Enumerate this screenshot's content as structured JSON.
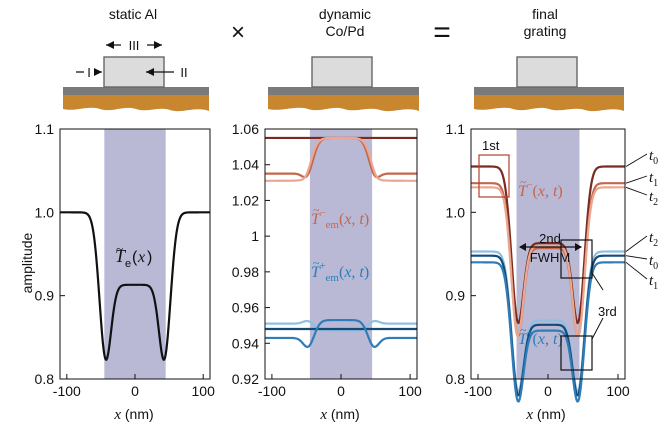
{
  "header": {
    "col1": [
      "static Al"
    ],
    "col2": [
      "dynamic",
      "Co/Pd"
    ],
    "col3": [
      "final",
      "grating"
    ],
    "op_times": "×",
    "op_equals": "=",
    "region_labels": {
      "III": "III",
      "I": "I",
      "II": "II"
    }
  },
  "colors": {
    "shade": "#b9b9d6",
    "substrate": "#c8862f",
    "cap": "#7a7a7a",
    "block_fill": "#dcdcdc",
    "block_stroke": "#666666",
    "black": "#111111",
    "dark_red": "#7a2a1e",
    "mid_red": "#c5664c",
    "light_red": "#e9a892",
    "dark_blue": "#134a78",
    "mid_blue": "#2f7db8",
    "light_blue": "#8fbfe3"
  },
  "chart_data": [
    {
      "type": "line",
      "title": "static Al",
      "xlabel": "x (nm)",
      "ylabel": "amplitude",
      "xlim": [
        -110,
        110
      ],
      "ylim": [
        0.8,
        1.1
      ],
      "xticks": [
        "-100",
        "0",
        "100"
      ],
      "yticks": [
        "0.8",
        "0.9",
        "1.0",
        "1.1"
      ],
      "shaded_region": [
        -45,
        45
      ],
      "series": [
        {
          "name": "T̃e(x)",
          "base": 1.0,
          "dips": [
            {
              "x": -45,
              "d": 0.127,
              "w": 8.5
            },
            {
              "x": 45,
              "d": 0.127,
              "w": 8.5
            }
          ],
          "bump": {
            "d": 0.087,
            "half": 45,
            "s": 4.5
          },
          "color": "#111111"
        }
      ],
      "annotation": "T̃e(x)"
    },
    {
      "type": "line",
      "title": "dynamic Co/Pd",
      "xlabel": "x (nm)",
      "xlim": [
        -110,
        110
      ],
      "ylim": [
        0.92,
        1.06
      ],
      "xticks": [
        "-100",
        "0",
        "100"
      ],
      "yticks": [
        "0.92",
        "0.94",
        "0.96",
        "0.98",
        "1",
        "1.02",
        "1.04",
        "1.06"
      ],
      "shaded_region": [
        -45,
        45
      ],
      "series": [
        {
          "name": "t0 (upper)",
          "base": 1.055,
          "flat": true,
          "color": "#7a2a1e"
        },
        {
          "name": "t1 (upper)",
          "base": 1.035,
          "dips": [
            {
              "x": -45,
              "d": 0.008,
              "w": 8
            },
            {
              "x": 45,
              "d": 0.008,
              "w": 8
            }
          ],
          "bump": {
            "d": -0.02,
            "half": 45,
            "s": 4.5
          },
          "color": "#c5664c"
        },
        {
          "name": "t2 (upper)",
          "base": 1.031,
          "dips": [
            {
              "x": -45,
              "d": 0.003,
              "w": 8
            },
            {
              "x": 45,
              "d": 0.003,
              "w": 8
            }
          ],
          "bump": {
            "d": -0.024,
            "half": 45,
            "s": 4.5
          },
          "color": "#e9a892"
        },
        {
          "name": "t2 (lower)",
          "base": 0.951,
          "dips": [
            {
              "x": -45,
              "d": -0.003,
              "w": 8
            },
            {
              "x": 45,
              "d": -0.003,
              "w": 8
            }
          ],
          "bump": {
            "d": 0.004,
            "half": 45,
            "s": 4.5
          },
          "color": "#8fbfe3"
        },
        {
          "name": "t0 (lower)",
          "base": 0.948,
          "flat": true,
          "color": "#134a78"
        },
        {
          "name": "t1 (lower)",
          "base": 0.943,
          "dips": [
            {
              "x": -45,
              "d": 0.009,
              "w": 8
            },
            {
              "x": 45,
              "d": 0.009,
              "w": 8
            }
          ],
          "bump": {
            "d": -0.01,
            "half": 45,
            "s": 4.5
          },
          "color": "#2f7db8"
        }
      ],
      "annotations": [
        "T̃⁻em(x,t)",
        "T̃⁺em(x,t)"
      ]
    },
    {
      "type": "line",
      "title": "final grating",
      "xlabel": "x (nm)",
      "xlim": [
        -110,
        110
      ],
      "ylim": [
        0.8,
        1.1
      ],
      "xticks": [
        "-100",
        "0",
        "100"
      ],
      "yticks": [
        "0.8",
        "0.9",
        "1.0",
        "1.1"
      ],
      "shaded_region": [
        -45,
        45
      ],
      "series": [
        {
          "name": "t0",
          "base": 1.055,
          "dips": [
            {
              "x": -45,
              "d": 0.135,
              "w": 8.5
            },
            {
              "x": 45,
              "d": 0.135,
              "w": 8.5
            }
          ],
          "bump": {
            "d": 0.092,
            "half": 45,
            "s": 4.5
          },
          "color": "#7a2a1e"
        },
        {
          "name": "t1",
          "base": 1.035,
          "dips": [
            {
              "x": -45,
              "d": 0.14,
              "w": 8.5
            },
            {
              "x": 45,
              "d": 0.14,
              "w": 8.5
            }
          ],
          "bump": {
            "d": 0.078,
            "half": 45,
            "s": 4.5
          },
          "color": "#c5664c"
        },
        {
          "name": "t2",
          "base": 1.03,
          "dips": [
            {
              "x": -45,
              "d": 0.14,
              "w": 8.5
            },
            {
              "x": 45,
              "d": 0.14,
              "w": 8.5
            }
          ],
          "bump": {
            "d": 0.07,
            "half": 45,
            "s": 4.5
          },
          "color": "#e9a892"
        },
        {
          "name": "t2",
          "base": 0.953,
          "dips": [
            {
              "x": -45,
              "d": 0.12,
              "w": 8.5
            },
            {
              "x": 45,
              "d": 0.12,
              "w": 8.5
            }
          ],
          "bump": {
            "d": 0.083,
            "half": 45,
            "s": 4.5
          },
          "color": "#8fbfe3"
        },
        {
          "name": "t0",
          "base": 0.948,
          "dips": [
            {
              "x": -45,
              "d": 0.12,
              "w": 8.5
            },
            {
              "x": 45,
              "d": 0.12,
              "w": 8.5
            }
          ],
          "bump": {
            "d": 0.083,
            "half": 45,
            "s": 4.5
          },
          "color": "#134a78"
        },
        {
          "name": "t1",
          "base": 0.94,
          "dips": [
            {
              "x": -45,
              "d": 0.12,
              "w": 8.5
            },
            {
              "x": 45,
              "d": 0.12,
              "w": 8.5
            }
          ],
          "bump": {
            "d": 0.082,
            "half": 45,
            "s": 4.5
          },
          "color": "#2f7db8"
        }
      ],
      "annotations": {
        "minus": "T̃⁻(x,t)",
        "plus": "T̃⁺(x,t)",
        "first": "1st",
        "second": "2nd",
        "fwhm": "FWHM",
        "third": "3rd"
      },
      "right_labels": [
        "t0",
        "t1",
        "t2",
        "t2",
        "t0",
        "t1"
      ]
    }
  ]
}
